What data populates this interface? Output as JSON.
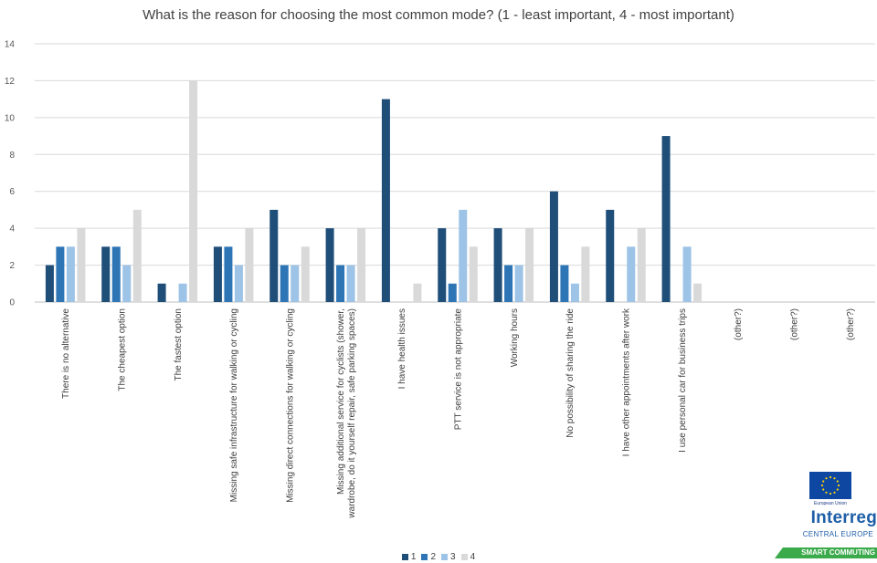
{
  "chart_data": {
    "type": "bar",
    "title": "What is the reason for choosing the most common mode? (1 - least important, 4 - most important)",
    "categories": [
      "There is no alternative",
      "The cheapest option",
      "The fastest option",
      "Missing safe infrastructure for walking or cycling",
      "Missing direct connections for walking or cycling",
      "Missing additional service for cyclists (shower, wardrobe, do it yourself repair, safe parking spaces)",
      "I have health issues",
      "PTT service is not appropriate",
      "Working hours",
      "No possibility of sharing the ride",
      "I have other appointments after work",
      "I use personal car for business trips",
      "(other?)",
      "(other?)",
      "(other?)"
    ],
    "category_lines": [
      [
        "There is no alternative"
      ],
      [
        "The cheapest option"
      ],
      [
        "The fastest option"
      ],
      [
        "Missing safe infrastructure for walking or cycling"
      ],
      [
        "Missing direct connections for walking or cycling"
      ],
      [
        "Missing additional service for cyclists (shower,",
        "wardrobe, do it yourself repair, safe parking spaces)"
      ],
      [
        "I have health issues"
      ],
      [
        "PTT service is not appropriate"
      ],
      [
        "Working hours"
      ],
      [
        "No possibility of sharing the ride"
      ],
      [
        "I have other appointments after work"
      ],
      [
        "I use personal car for business trips"
      ],
      [
        "(other?)"
      ],
      [
        "(other?)"
      ],
      [
        "(other?)"
      ]
    ],
    "series": [
      {
        "name": "1",
        "color": "#1f4e79",
        "values": [
          2,
          3,
          1,
          3,
          5,
          4,
          11,
          4,
          4,
          6,
          5,
          9,
          0,
          0,
          0
        ]
      },
      {
        "name": "2",
        "color": "#2e75b6",
        "values": [
          3,
          3,
          0,
          3,
          2,
          2,
          0,
          1,
          2,
          2,
          0,
          0,
          0,
          0,
          0
        ]
      },
      {
        "name": "3",
        "color": "#9dc3e6",
        "values": [
          3,
          2,
          1,
          2,
          2,
          2,
          0,
          5,
          2,
          1,
          3,
          3,
          0,
          0,
          0
        ]
      },
      {
        "name": "4",
        "color": "#d9d9d9",
        "values": [
          4,
          5,
          12,
          4,
          3,
          4,
          1,
          3,
          4,
          3,
          4,
          1,
          0,
          0,
          0
        ]
      }
    ],
    "ylim": [
      0,
      14
    ],
    "yticks": [
      0,
      2,
      4,
      6,
      8,
      10,
      12,
      14
    ],
    "grid": true,
    "legend_position": "bottom"
  },
  "logo": {
    "eu_label": "European Union",
    "brand": "Interreg",
    "program": "CENTRAL EUROPE",
    "project": "SMART COMMUTING",
    "flag_color": "#0d47a1",
    "star_color": "#ffd600"
  }
}
